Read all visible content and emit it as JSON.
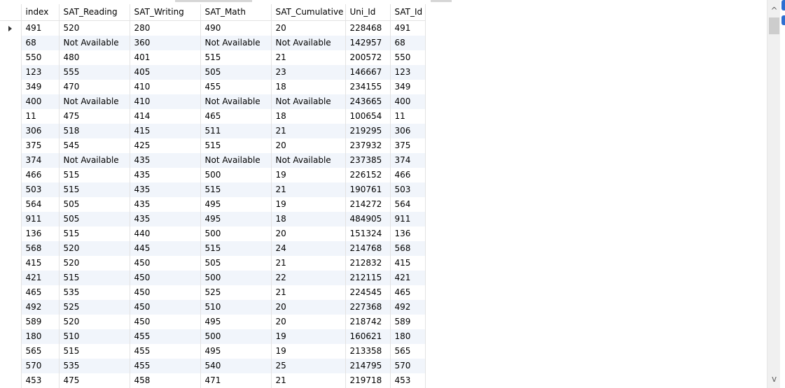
{
  "grid": {
    "columns": [
      "index",
      "SAT_Reading",
      "SAT_Writing",
      "SAT_Math",
      "SAT_Cumulative",
      "Uni_Id",
      "SAT_Id"
    ],
    "rows": [
      [
        "491",
        "520",
        "280",
        "490",
        "20",
        "228468",
        "491"
      ],
      [
        "68",
        "Not Available",
        "360",
        "Not Available",
        "Not Available",
        "142957",
        "68"
      ],
      [
        "550",
        "480",
        "401",
        "515",
        "21",
        "200572",
        "550"
      ],
      [
        "123",
        "555",
        "405",
        "505",
        "23",
        "146667",
        "123"
      ],
      [
        "349",
        "470",
        "410",
        "455",
        "18",
        "234155",
        "349"
      ],
      [
        "400",
        "Not Available",
        "410",
        "Not Available",
        "Not Available",
        "243665",
        "400"
      ],
      [
        "11",
        "475",
        "414",
        "465",
        "18",
        "100654",
        "11"
      ],
      [
        "306",
        "518",
        "415",
        "511",
        "21",
        "219295",
        "306"
      ],
      [
        "375",
        "545",
        "425",
        "515",
        "20",
        "237932",
        "375"
      ],
      [
        "374",
        "Not Available",
        "435",
        "Not Available",
        "Not Available",
        "237385",
        "374"
      ],
      [
        "466",
        "515",
        "435",
        "500",
        "19",
        "226152",
        "466"
      ],
      [
        "503",
        "515",
        "435",
        "515",
        "21",
        "190761",
        "503"
      ],
      [
        "564",
        "505",
        "435",
        "495",
        "19",
        "214272",
        "564"
      ],
      [
        "911",
        "505",
        "435",
        "495",
        "18",
        "484905",
        "911"
      ],
      [
        "136",
        "515",
        "440",
        "500",
        "20",
        "151324",
        "136"
      ],
      [
        "568",
        "520",
        "445",
        "515",
        "24",
        "214768",
        "568"
      ],
      [
        "415",
        "520",
        "450",
        "505",
        "21",
        "212832",
        "415"
      ],
      [
        "421",
        "515",
        "450",
        "500",
        "22",
        "212115",
        "421"
      ],
      [
        "465",
        "535",
        "450",
        "525",
        "21",
        "224545",
        "465"
      ],
      [
        "492",
        "525",
        "450",
        "510",
        "20",
        "227368",
        "492"
      ],
      [
        "589",
        "520",
        "450",
        "495",
        "20",
        "218742",
        "589"
      ],
      [
        "180",
        "510",
        "455",
        "500",
        "19",
        "160621",
        "180"
      ],
      [
        "565",
        "515",
        "455",
        "495",
        "19",
        "213358",
        "565"
      ],
      [
        "570",
        "535",
        "455",
        "540",
        "25",
        "214795",
        "570"
      ],
      [
        "453",
        "475",
        "458",
        "471",
        "21",
        "219718",
        "453"
      ]
    ],
    "current_row_marker": "row-indicator-arrow"
  },
  "scrollbar": {
    "up_icon": "chevron-up-icon",
    "down_icon": "chevron-down-icon",
    "up_glyph": "^",
    "down_glyph": "v"
  }
}
